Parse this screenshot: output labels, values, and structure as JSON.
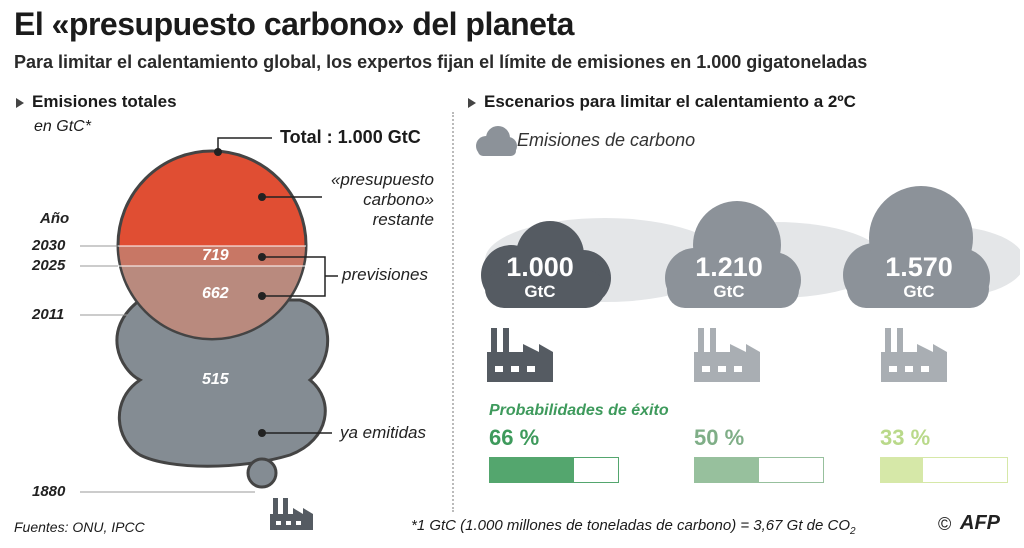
{
  "header": {
    "title": "El «presupuesto carbono» del planeta",
    "subtitle": "Para limitar el calentamiento global, los expertos fijan el límite de emisiones en 1.000 gigatoneladas"
  },
  "left": {
    "heading": "Emisiones totales",
    "unit": "en GtC*",
    "total_label": "Total : 1.000 GtC",
    "year_header": "Año",
    "years": [
      "2030",
      "2025",
      "2011",
      "1880"
    ],
    "values": {
      "remaining_upper": "719",
      "remaining_lower": "662",
      "emitted": "515"
    },
    "labels": {
      "budget_line1": "«presupuesto",
      "budget_line2": "carbono»",
      "budget_line3": "restante",
      "forecasts": "previsiones",
      "emitted": "ya emitidas"
    },
    "colors": {
      "budget": "#e04e33",
      "forecast": "#b98a7e",
      "emitted": "#848c93"
    }
  },
  "right": {
    "heading": "Escenarios para limitar el calentamiento a 2ºC",
    "legend": "Emisiones de carbono",
    "prob_heading": "Probabilidades de éxito",
    "unit": "GtC",
    "scenarios": [
      {
        "value": "1.000",
        "prob": "66 %",
        "fraction": 0.66,
        "color": "#54a66e",
        "cloud": "#555b62"
      },
      {
        "value": "1.210",
        "prob": "50 %",
        "fraction": 0.5,
        "color": "#97c09d",
        "cloud": "#8c9299"
      },
      {
        "value": "1.570",
        "prob": "33 %",
        "fraction": 0.33,
        "color": "#d6e8a8",
        "cloud": "#8c9299"
      }
    ]
  },
  "footer": {
    "sources": "Fuentes: ONU, IPCC",
    "note_main": "*1 GtC (1.000 millones de toneladas de carbono)  = 3,67 Gt de CO",
    "note_sub": "2",
    "copyright": "©",
    "agency": "AFP"
  }
}
